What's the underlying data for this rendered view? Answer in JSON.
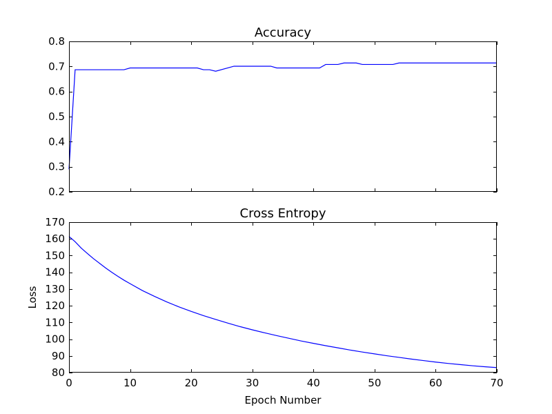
{
  "chart_data": [
    {
      "type": "line",
      "title": "Accuracy",
      "xlabel": "",
      "ylabel": "",
      "xlim": [
        0,
        70
      ],
      "ylim": [
        0.2,
        0.8
      ],
      "xticks": [],
      "yticks": [
        "0.2",
        "0.3",
        "0.4",
        "0.5",
        "0.6",
        "0.7",
        "0.8"
      ],
      "grid": false,
      "series": [
        {
          "color": "#0000ff",
          "x": [
            0,
            1,
            9,
            10,
            21,
            22,
            23,
            24,
            27,
            33,
            34,
            41,
            42,
            44,
            45,
            47,
            48,
            53,
            54,
            70
          ],
          "y": [
            0.29,
            0.687,
            0.687,
            0.694,
            0.694,
            0.687,
            0.687,
            0.681,
            0.701,
            0.701,
            0.694,
            0.694,
            0.708,
            0.708,
            0.714,
            0.714,
            0.708,
            0.708,
            0.714,
            0.714
          ]
        }
      ]
    },
    {
      "type": "line",
      "title": "Cross Entropy",
      "xlabel": "Epoch Number",
      "ylabel": "Loss",
      "xlim": [
        0,
        70
      ],
      "ylim": [
        80,
        170
      ],
      "xticks": [
        "0",
        "10",
        "20",
        "30",
        "40",
        "50",
        "60",
        "70"
      ],
      "yticks": [
        "80",
        "90",
        "100",
        "110",
        "120",
        "130",
        "140",
        "150",
        "160",
        "170"
      ],
      "grid": false,
      "series": [
        {
          "color": "#0000ff",
          "x": [
            0,
            1,
            2,
            3,
            4,
            5,
            6,
            7,
            8,
            9,
            10,
            12,
            14,
            16,
            18,
            20,
            22,
            24,
            26,
            28,
            30,
            32,
            34,
            36,
            38,
            40,
            42,
            44,
            46,
            48,
            50,
            52,
            54,
            56,
            58,
            60,
            62,
            64,
            66,
            68,
            70
          ],
          "y": [
            161.5,
            158.3,
            154.5,
            151.3,
            148.2,
            145.4,
            142.6,
            140.0,
            137.6,
            135.3,
            133.2,
            129.1,
            125.6,
            122.3,
            119.3,
            116.6,
            114.1,
            111.8,
            109.6,
            107.5,
            105.6,
            103.8,
            102.1,
            100.5,
            98.9,
            97.5,
            96.1,
            94.8,
            93.5,
            92.3,
            91.2,
            90.1,
            89.1,
            88.1,
            87.2,
            86.3,
            85.5,
            84.8,
            84.1,
            83.5,
            83.0
          ]
        }
      ]
    }
  ]
}
